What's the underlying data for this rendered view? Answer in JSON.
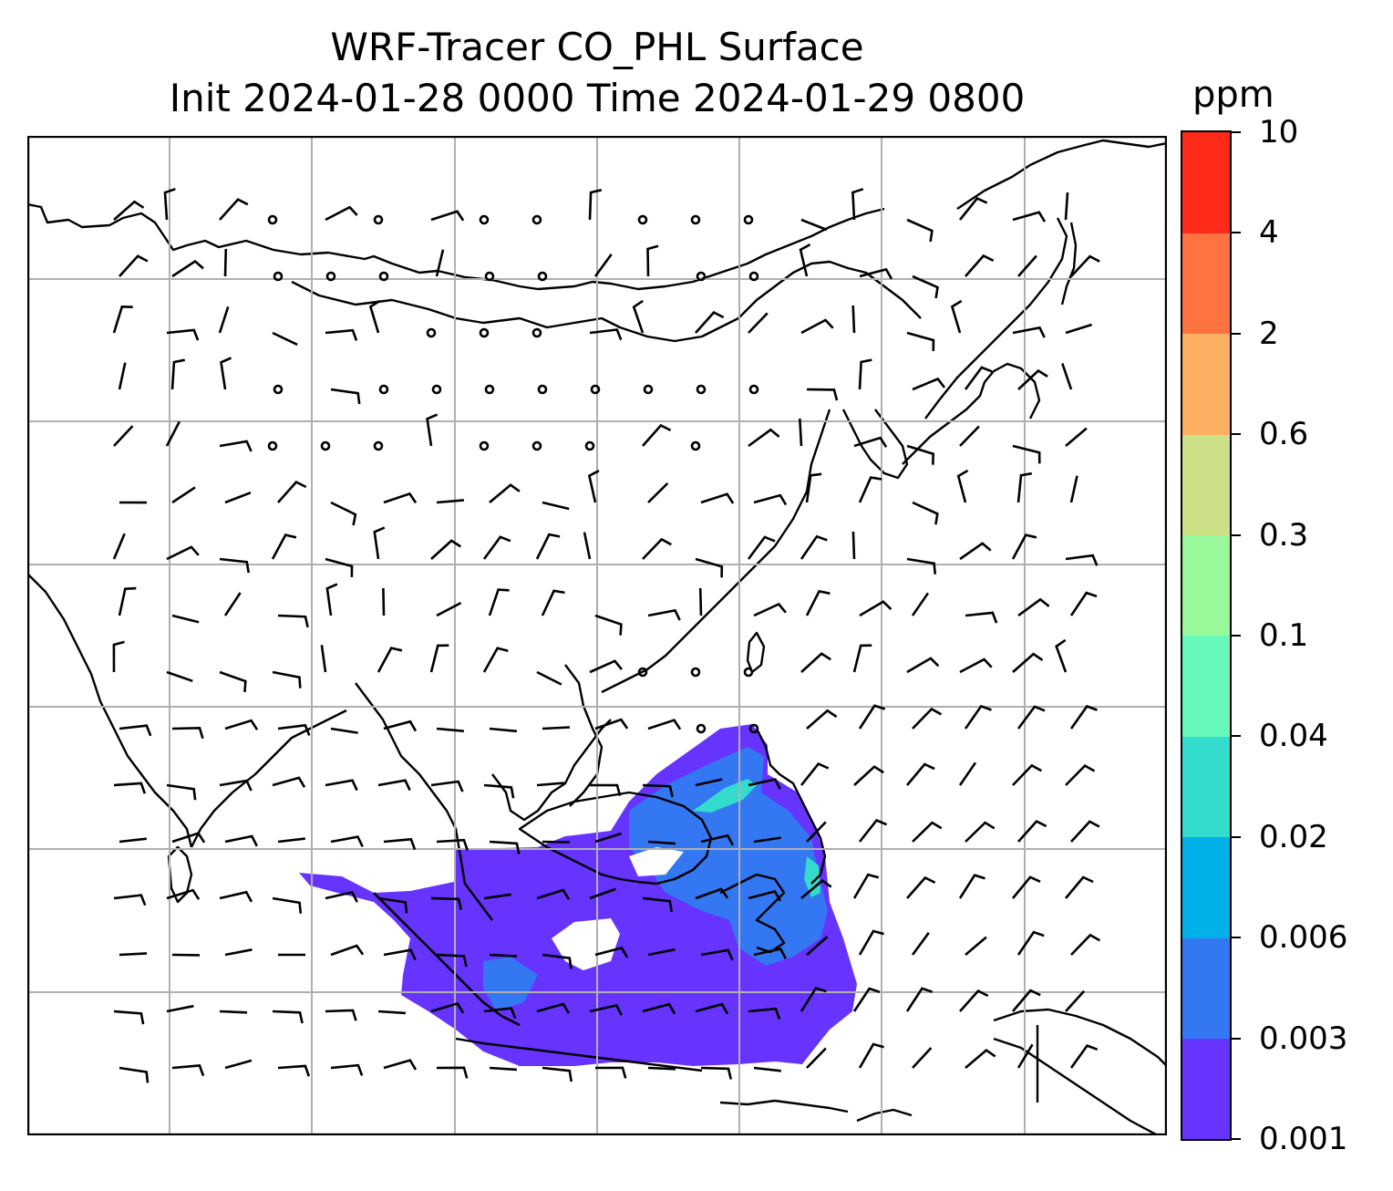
{
  "title": {
    "line1": "WRF-Tracer CO_PHL Surface",
    "line2": "Init 2024-01-28 0000 Time 2024-01-29 0800"
  },
  "colorbar": {
    "unit": "ppm",
    "levels": [
      "0.001",
      "0.003",
      "0.006",
      "0.02",
      "0.04",
      "0.1",
      "0.3",
      "0.6",
      "2",
      "4",
      "10"
    ],
    "colors": [
      "#6633ff",
      "#3377f2",
      "#00b1e9",
      "#33dccc",
      "#66f9bb",
      "#99f899",
      "#cce088",
      "#fdb061",
      "#fe7340",
      "#ff2a1a"
    ]
  },
  "map": {
    "region": "East / Southeast Asia",
    "features": [
      "coastlines",
      "lat-lon gridlines",
      "surface wind barbs",
      "CO_PHL tracer concentration"
    ],
    "plume_color": "#6633ff",
    "plume_secondary_color": "#3377f2",
    "plume_high_color": "#33dccc"
  }
}
